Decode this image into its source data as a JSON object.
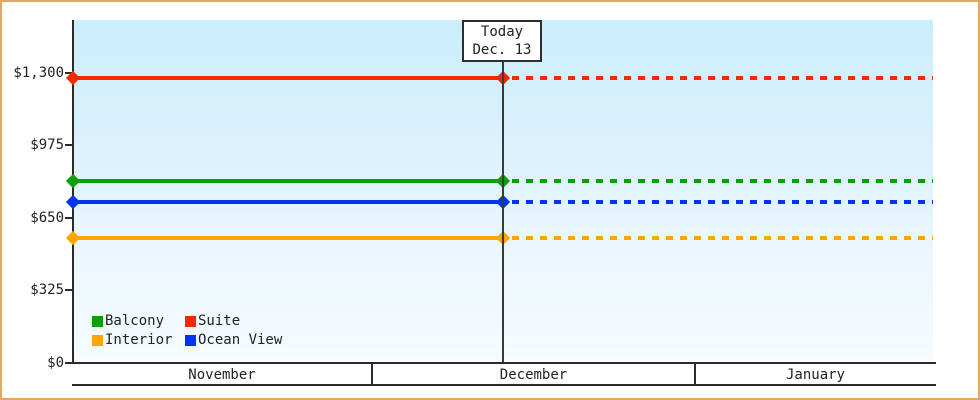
{
  "window": {
    "frame_border_color": "#e9a55c",
    "background_color": "#ffffff",
    "plot_gradient_top": "#cbedfc",
    "plot_gradient_bottom": "#f6fcff",
    "axis_color": "#2b2b2b",
    "text_color": "#222222"
  },
  "chart_data": {
    "type": "line",
    "title": "",
    "xlabel": "",
    "ylabel": "",
    "grid": false,
    "legend_position": "bottom-left-inside",
    "x_axis": {
      "months": [
        "November",
        "December",
        "January"
      ]
    },
    "y_axis": {
      "range": [
        0,
        1300
      ],
      "ticks": [
        {
          "value": 0,
          "label": "$0"
        },
        {
          "value": 325,
          "label": "$325"
        },
        {
          "value": 650,
          "label": "$650"
        },
        {
          "value": 975,
          "label": "$975"
        },
        {
          "value": 1300,
          "label": "$1,300"
        }
      ]
    },
    "today": {
      "label_line1": "Today",
      "label_line2": "Dec. 13",
      "note": "solid lines before today, dashed projection after today"
    },
    "series": [
      {
        "name": "Suite",
        "slug": "suite",
        "color": "#f42900",
        "value": 1275
      },
      {
        "name": "Balcony",
        "slug": "balcony",
        "color": "#0aa00a",
        "value": 815
      },
      {
        "name": "Ocean View",
        "slug": "ocean-view",
        "color": "#0433f0",
        "value": 720
      },
      {
        "name": "Interior",
        "slug": "interior",
        "color": "#ffa500",
        "value": 560
      }
    ],
    "legend": {
      "items": [
        {
          "label": "Balcony",
          "color": "#0aa00a"
        },
        {
          "label": "Suite",
          "color": "#f42900"
        },
        {
          "label": "Interior",
          "color": "#ffa500"
        },
        {
          "label": "Ocean View",
          "color": "#0433f0"
        }
      ]
    }
  }
}
